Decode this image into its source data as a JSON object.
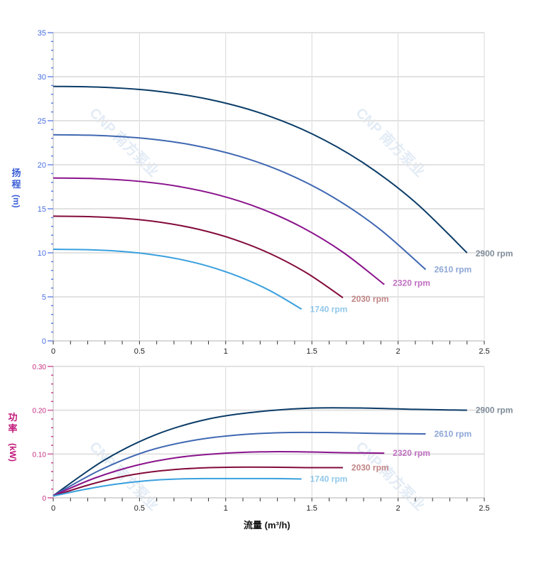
{
  "watermark": "CNP 南方泵业",
  "chart_data": [
    {
      "type": "line",
      "ylabel_chars": [
        "扬",
        "程"
      ],
      "ylabel_unit": "(m)",
      "xlim": [
        0,
        2.5
      ],
      "ylim": [
        0,
        35
      ],
      "xticks": [
        "0",
        "0.5",
        "1",
        "1.5",
        "2",
        "2.5"
      ],
      "yticks": [
        "0",
        "5",
        "10",
        "15",
        "20",
        "25",
        "30",
        "35"
      ],
      "grid": true,
      "axis_color": "#4a6fe0",
      "series": [
        {
          "name": "2900 rpm",
          "color": "#0b3c68",
          "label_color": "#7f8c99",
          "x": [
            0,
            0.3,
            0.6,
            0.9,
            1.2,
            1.5,
            1.8,
            2.1,
            2.4
          ],
          "y": [
            28.9,
            28.79,
            28.36,
            27.44,
            25.88,
            23.52,
            20.19,
            15.74,
            10.0
          ]
        },
        {
          "name": "2610 rpm",
          "color": "#4068b2",
          "label_color": "#8ea7d6",
          "x": [
            0,
            0.27,
            0.54,
            0.81,
            1.08,
            1.35,
            1.62,
            1.89,
            2.16
          ],
          "y": [
            23.41,
            23.32,
            22.97,
            22.23,
            20.96,
            19.05,
            16.35,
            12.75,
            8.1
          ]
        },
        {
          "name": "2320 rpm",
          "color": "#8a138c",
          "label_color": "#c070c2",
          "x": [
            0,
            0.24,
            0.48,
            0.72,
            0.96,
            1.2,
            1.44,
            1.68,
            1.92
          ],
          "y": [
            18.5,
            18.43,
            18.15,
            17.56,
            16.56,
            15.05,
            12.92,
            10.07,
            6.4
          ]
        },
        {
          "name": "2030 rpm",
          "color": "#830b3b",
          "label_color": "#c08585",
          "x": [
            0,
            0.21,
            0.42,
            0.63,
            0.84,
            1.05,
            1.26,
            1.47,
            1.68
          ],
          "y": [
            14.16,
            14.11,
            13.9,
            13.45,
            12.68,
            11.52,
            9.89,
            7.71,
            4.9
          ]
        },
        {
          "name": "1740 rpm",
          "color": "#3aa0de",
          "label_color": "#92c8ea",
          "x": [
            0,
            0.18,
            0.36,
            0.54,
            0.72,
            0.9,
            1.08,
            1.26,
            1.44
          ],
          "y": [
            10.4,
            10.36,
            10.21,
            9.88,
            9.32,
            8.47,
            7.27,
            5.67,
            3.6
          ]
        }
      ]
    },
    {
      "type": "line",
      "ylabel_chars": [
        "功",
        "率"
      ],
      "ylabel_unit": "(kW)",
      "xlabel": "流量 (m³/h)",
      "xlim": [
        0,
        2.5
      ],
      "ylim": [
        0,
        0.3
      ],
      "xticks": [
        "0",
        "0.5",
        "1",
        "1.5",
        "2",
        "2.5"
      ],
      "yticks": [
        "0",
        "0.10",
        "0.20",
        "0.30"
      ],
      "grid": true,
      "axis_color": "#c2307f",
      "series": [
        {
          "name": "2900 rpm",
          "color": "#0b3c68",
          "label_color": "#7f8c99",
          "x": [
            0,
            0.3,
            0.6,
            0.9,
            1.2,
            1.5,
            1.8,
            2.1,
            2.4
          ],
          "y": [
            0.005,
            0.087,
            0.145,
            0.18,
            0.197,
            0.205,
            0.205,
            0.202,
            0.2
          ]
        },
        {
          "name": "2610 rpm",
          "color": "#4068b2",
          "label_color": "#8ea7d6",
          "x": [
            0,
            0.27,
            0.54,
            0.81,
            1.08,
            1.35,
            1.62,
            1.89,
            2.16
          ],
          "y": [
            0.005,
            0.063,
            0.106,
            0.131,
            0.144,
            0.149,
            0.149,
            0.147,
            0.146
          ]
        },
        {
          "name": "2320 rpm",
          "color": "#8a138c",
          "label_color": "#c070c2",
          "x": [
            0,
            0.24,
            0.48,
            0.72,
            0.96,
            1.2,
            1.44,
            1.68,
            1.92
          ],
          "y": [
            0.005,
            0.045,
            0.074,
            0.092,
            0.101,
            0.105,
            0.105,
            0.103,
            0.102
          ]
        },
        {
          "name": "2030 rpm",
          "color": "#830b3b",
          "label_color": "#c08585",
          "x": [
            0,
            0.21,
            0.42,
            0.63,
            0.84,
            1.05,
            1.26,
            1.47,
            1.68
          ],
          "y": [
            0.004,
            0.03,
            0.05,
            0.062,
            0.068,
            0.07,
            0.07,
            0.069,
            0.069
          ]
        },
        {
          "name": "1740 rpm",
          "color": "#3aa0de",
          "label_color": "#92c8ea",
          "x": [
            0,
            0.18,
            0.36,
            0.54,
            0.72,
            0.9,
            1.08,
            1.26,
            1.44
          ],
          "y": [
            0.004,
            0.019,
            0.031,
            0.039,
            0.043,
            0.044,
            0.044,
            0.044,
            0.043
          ]
        }
      ]
    }
  ]
}
